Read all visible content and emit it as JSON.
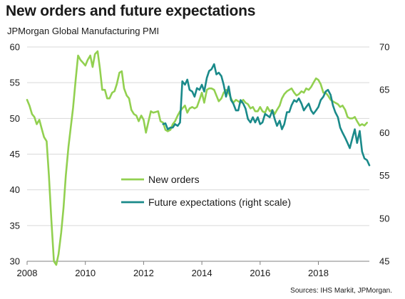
{
  "title": "New orders and future expectations",
  "subtitle": "JPMorgan Global Manufacturing PMI",
  "source": "Sources: IHS Markit, JPMorgan.",
  "colors": {
    "new_orders": "#92d050",
    "future_expectations": "#1a8a8a",
    "grid": "#d9d9d9",
    "axis": "#808080"
  },
  "chart_data": {
    "type": "line",
    "title": "New orders and future expectations",
    "subtitle": "JPMorgan Global Manufacturing PMI",
    "x_ticks": [
      "2008",
      "2010",
      "2012",
      "2014",
      "2016",
      "2018"
    ],
    "xlim": [
      2008.0,
      2019.75
    ],
    "y_left": {
      "lim": [
        30,
        60
      ],
      "ticks": [
        "30",
        "35",
        "40",
        "45",
        "50",
        "55",
        "60"
      ]
    },
    "y_right": {
      "lim": [
        45,
        70
      ],
      "ticks": [
        "45",
        "50",
        "55",
        "60",
        "65",
        "70"
      ]
    },
    "grid": "horizontal",
    "legend": "center-left",
    "series": [
      {
        "name": "New orders",
        "axis": "left",
        "color": "#92d050",
        "points": [
          [
            2008.0,
            52.6
          ],
          [
            2008.08,
            51.8
          ],
          [
            2008.17,
            50.6
          ],
          [
            2008.25,
            50.2
          ],
          [
            2008.33,
            49.2
          ],
          [
            2008.42,
            49.8
          ],
          [
            2008.5,
            48.6
          ],
          [
            2008.58,
            47.4
          ],
          [
            2008.67,
            46.8
          ],
          [
            2008.75,
            42.0
          ],
          [
            2008.83,
            36.0
          ],
          [
            2008.92,
            30.0
          ],
          [
            2009.0,
            29.5
          ],
          [
            2009.08,
            31.0
          ],
          [
            2009.17,
            34.0
          ],
          [
            2009.25,
            37.5
          ],
          [
            2009.33,
            42.0
          ],
          [
            2009.42,
            46.0
          ],
          [
            2009.5,
            48.8
          ],
          [
            2009.58,
            51.5
          ],
          [
            2009.67,
            55.5
          ],
          [
            2009.75,
            58.8
          ],
          [
            2009.83,
            58.2
          ],
          [
            2009.92,
            57.8
          ],
          [
            2010.0,
            57.4
          ],
          [
            2010.08,
            58.2
          ],
          [
            2010.17,
            58.8
          ],
          [
            2010.25,
            57.2
          ],
          [
            2010.33,
            59.0
          ],
          [
            2010.42,
            59.4
          ],
          [
            2010.5,
            57.0
          ],
          [
            2010.58,
            54.0
          ],
          [
            2010.67,
            54.0
          ],
          [
            2010.75,
            52.8
          ],
          [
            2010.83,
            52.8
          ],
          [
            2010.92,
            53.6
          ],
          [
            2011.0,
            53.8
          ],
          [
            2011.08,
            54.8
          ],
          [
            2011.17,
            56.4
          ],
          [
            2011.25,
            56.6
          ],
          [
            2011.33,
            54.2
          ],
          [
            2011.42,
            53.2
          ],
          [
            2011.5,
            52.8
          ],
          [
            2011.58,
            51.2
          ],
          [
            2011.67,
            50.6
          ],
          [
            2011.75,
            50.4
          ],
          [
            2011.83,
            49.6
          ],
          [
            2011.92,
            50.4
          ],
          [
            2012.0,
            49.8
          ],
          [
            2012.08,
            48.0
          ],
          [
            2012.17,
            49.6
          ],
          [
            2012.25,
            51.0
          ],
          [
            2012.33,
            50.8
          ],
          [
            2012.42,
            50.9
          ],
          [
            2012.5,
            51.0
          ],
          [
            2012.58,
            49.6
          ],
          [
            2012.67,
            49.4
          ],
          [
            2012.75,
            48.4
          ],
          [
            2012.83,
            48.2
          ],
          [
            2012.92,
            48.4
          ],
          [
            2013.0,
            49.2
          ],
          [
            2013.08,
            49.6
          ],
          [
            2013.17,
            50.4
          ],
          [
            2013.25,
            51.0
          ],
          [
            2013.33,
            51.4
          ],
          [
            2013.42,
            51.8
          ],
          [
            2013.5,
            50.8
          ],
          [
            2013.58,
            51.4
          ],
          [
            2013.67,
            51.6
          ],
          [
            2013.75,
            51.4
          ],
          [
            2013.83,
            51.6
          ],
          [
            2013.92,
            52.6
          ],
          [
            2014.0,
            53.6
          ],
          [
            2014.08,
            52.2
          ],
          [
            2014.17,
            54.0
          ],
          [
            2014.25,
            54.2
          ],
          [
            2014.33,
            54.2
          ],
          [
            2014.42,
            54.0
          ],
          [
            2014.5,
            53.2
          ],
          [
            2014.58,
            52.4
          ],
          [
            2014.67,
            52.8
          ],
          [
            2014.75,
            53.6
          ],
          [
            2014.83,
            54.0
          ],
          [
            2014.92,
            53.6
          ],
          [
            2015.0,
            52.8
          ],
          [
            2015.08,
            52.2
          ],
          [
            2015.17,
            52.6
          ],
          [
            2015.25,
            52.4
          ],
          [
            2015.33,
            52.2
          ],
          [
            2015.42,
            52.6
          ],
          [
            2015.5,
            52.2
          ],
          [
            2015.58,
            52.0
          ],
          [
            2015.67,
            51.4
          ],
          [
            2015.75,
            51.6
          ],
          [
            2015.83,
            51.0
          ],
          [
            2015.92,
            51.0
          ],
          [
            2016.0,
            51.6
          ],
          [
            2016.08,
            51.0
          ],
          [
            2016.17,
            50.8
          ],
          [
            2016.25,
            51.6
          ],
          [
            2016.33,
            51.0
          ],
          [
            2016.42,
            51.2
          ],
          [
            2016.5,
            50.6
          ],
          [
            2016.58,
            51.2
          ],
          [
            2016.67,
            51.8
          ],
          [
            2016.75,
            52.8
          ],
          [
            2016.83,
            53.4
          ],
          [
            2016.92,
            53.8
          ],
          [
            2017.0,
            54.0
          ],
          [
            2017.08,
            54.2
          ],
          [
            2017.17,
            53.6
          ],
          [
            2017.25,
            53.2
          ],
          [
            2017.33,
            53.4
          ],
          [
            2017.42,
            53.8
          ],
          [
            2017.5,
            53.6
          ],
          [
            2017.58,
            54.2
          ],
          [
            2017.67,
            54.0
          ],
          [
            2017.75,
            54.4
          ],
          [
            2017.83,
            55.0
          ],
          [
            2017.92,
            55.6
          ],
          [
            2018.0,
            55.4
          ],
          [
            2018.08,
            54.8
          ],
          [
            2018.17,
            53.6
          ],
          [
            2018.25,
            53.6
          ],
          [
            2018.33,
            53.2
          ],
          [
            2018.42,
            52.6
          ],
          [
            2018.5,
            52.4
          ],
          [
            2018.58,
            52.2
          ],
          [
            2018.67,
            52.0
          ],
          [
            2018.75,
            51.6
          ],
          [
            2018.83,
            51.8
          ],
          [
            2018.92,
            51.2
          ],
          [
            2019.0,
            50.2
          ],
          [
            2019.08,
            50.0
          ],
          [
            2019.17,
            50.0
          ],
          [
            2019.25,
            50.2
          ],
          [
            2019.33,
            49.6
          ],
          [
            2019.42,
            49.0
          ],
          [
            2019.5,
            49.2
          ],
          [
            2019.58,
            49.0
          ],
          [
            2019.67,
            49.4
          ]
        ]
      },
      {
        "name": "Future expectations (right scale)",
        "axis": "right",
        "color": "#1a8a8a",
        "points": [
          [
            2012.67,
            61.0
          ],
          [
            2012.75,
            61.1
          ],
          [
            2012.83,
            60.4
          ],
          [
            2012.92,
            60.6
          ],
          [
            2013.0,
            60.6
          ],
          [
            2013.08,
            61.0
          ],
          [
            2013.17,
            60.8
          ],
          [
            2013.25,
            61.2
          ],
          [
            2013.33,
            66.0
          ],
          [
            2013.42,
            65.6
          ],
          [
            2013.5,
            66.2
          ],
          [
            2013.58,
            65.0
          ],
          [
            2013.67,
            64.8
          ],
          [
            2013.75,
            64.2
          ],
          [
            2013.83,
            65.2
          ],
          [
            2013.92,
            65.0
          ],
          [
            2014.0,
            65.6
          ],
          [
            2014.08,
            64.8
          ],
          [
            2014.17,
            66.4
          ],
          [
            2014.25,
            67.2
          ],
          [
            2014.33,
            67.4
          ],
          [
            2014.42,
            68.0
          ],
          [
            2014.5,
            66.8
          ],
          [
            2014.58,
            67.0
          ],
          [
            2014.67,
            66.6
          ],
          [
            2014.75,
            65.6
          ],
          [
            2014.83,
            64.2
          ],
          [
            2014.92,
            65.4
          ],
          [
            2015.0,
            63.8
          ],
          [
            2015.08,
            63.4
          ],
          [
            2015.17,
            62.6
          ],
          [
            2015.25,
            62.6
          ],
          [
            2015.33,
            63.8
          ],
          [
            2015.42,
            63.4
          ],
          [
            2015.5,
            62.8
          ],
          [
            2015.58,
            61.6
          ],
          [
            2015.67,
            61.2
          ],
          [
            2015.75,
            61.8
          ],
          [
            2015.83,
            61.2
          ],
          [
            2015.92,
            61.8
          ],
          [
            2016.0,
            61.0
          ],
          [
            2016.08,
            61.2
          ],
          [
            2016.17,
            62.2
          ],
          [
            2016.25,
            62.0
          ],
          [
            2016.33,
            61.8
          ],
          [
            2016.42,
            62.6
          ],
          [
            2016.5,
            61.6
          ],
          [
            2016.58,
            60.8
          ],
          [
            2016.67,
            61.4
          ],
          [
            2016.75,
            60.4
          ],
          [
            2016.83,
            61.0
          ],
          [
            2016.92,
            62.4
          ],
          [
            2017.0,
            62.4
          ],
          [
            2017.08,
            63.2
          ],
          [
            2017.17,
            63.8
          ],
          [
            2017.25,
            63.6
          ],
          [
            2017.33,
            64.0
          ],
          [
            2017.42,
            63.4
          ],
          [
            2017.5,
            62.6
          ],
          [
            2017.58,
            63.0
          ],
          [
            2017.67,
            63.4
          ],
          [
            2017.75,
            62.6
          ],
          [
            2017.83,
            62.2
          ],
          [
            2017.92,
            62.6
          ],
          [
            2018.0,
            63.0
          ],
          [
            2018.08,
            63.8
          ],
          [
            2018.17,
            64.2
          ],
          [
            2018.25,
            64.8
          ],
          [
            2018.33,
            65.0
          ],
          [
            2018.42,
            64.4
          ],
          [
            2018.5,
            63.2
          ],
          [
            2018.58,
            62.4
          ],
          [
            2018.67,
            61.8
          ],
          [
            2018.75,
            60.6
          ],
          [
            2018.83,
            60.0
          ],
          [
            2018.92,
            59.4
          ],
          [
            2019.0,
            58.8
          ],
          [
            2019.08,
            58.2
          ],
          [
            2019.17,
            59.4
          ],
          [
            2019.25,
            60.4
          ],
          [
            2019.33,
            58.8
          ],
          [
            2019.42,
            60.2
          ],
          [
            2019.5,
            57.8
          ],
          [
            2019.58,
            57.0
          ],
          [
            2019.67,
            56.8
          ],
          [
            2019.75,
            56.2
          ]
        ]
      }
    ]
  }
}
